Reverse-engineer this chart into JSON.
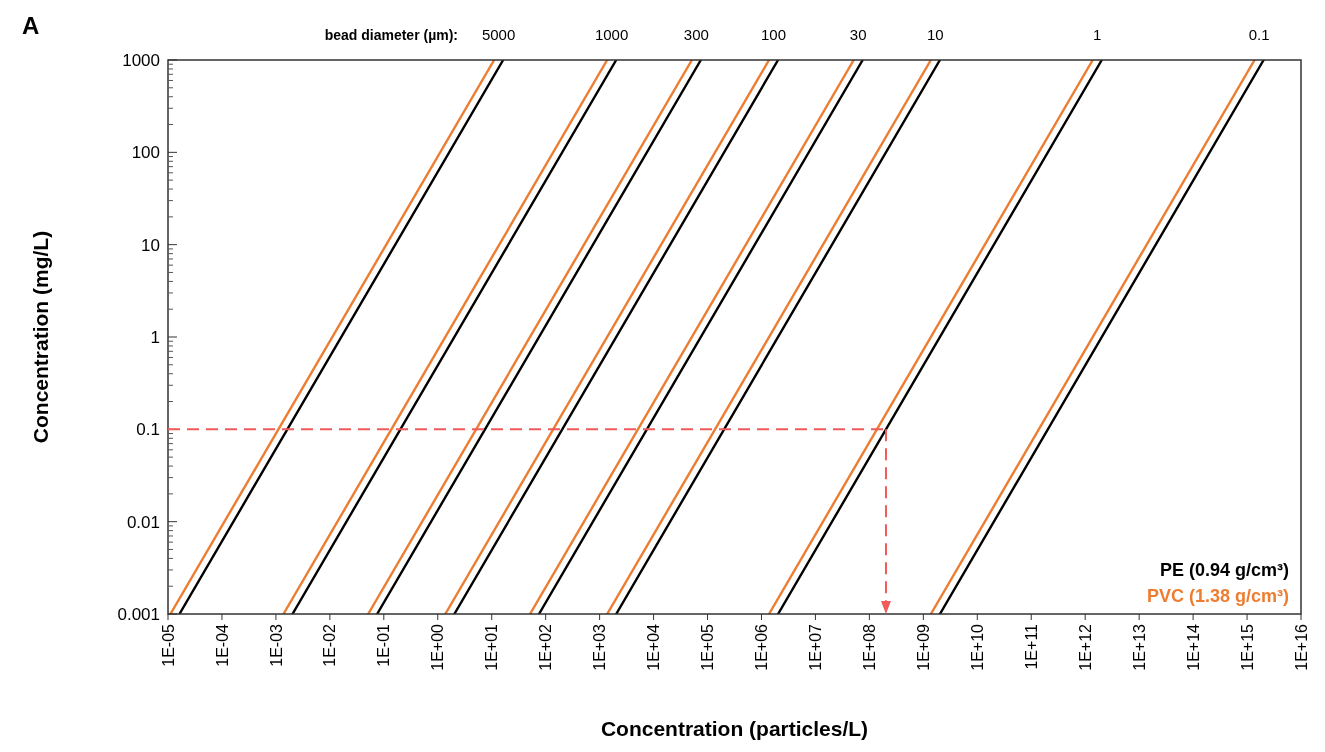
{
  "chart_data": {
    "type": "line",
    "title": "A",
    "xlabel": "Concentration  (particles/L)",
    "ylabel": "Concentration  (mg/L)",
    "log": "xy",
    "legend": "bottom right",
    "line_style": "solid",
    "xlim": [
      1e-05,
      1e+16
    ],
    "xticks": [
      {
        "value": 1e-05,
        "label": "1E-05"
      },
      {
        "value": 0.0001,
        "label": "1E-04"
      },
      {
        "value": 0.001,
        "label": "1E-03"
      },
      {
        "value": 0.01,
        "label": "1E-02"
      },
      {
        "value": 0.1,
        "label": "1E-01"
      },
      {
        "value": 1,
        "label": "1E+00"
      },
      {
        "value": 10.0,
        "label": "1E+01"
      },
      {
        "value": 100.0,
        "label": "1E+02"
      },
      {
        "value": 1000.0,
        "label": "1E+03"
      },
      {
        "value": 10000.0,
        "label": "1E+04"
      },
      {
        "value": 100000.0,
        "label": "1E+05"
      },
      {
        "value": 1000000.0,
        "label": "1E+06"
      },
      {
        "value": 10000000.0,
        "label": "1E+07"
      },
      {
        "value": 100000000.0,
        "label": "1E+08"
      },
      {
        "value": 1000000000.0,
        "label": "1E+09"
      },
      {
        "value": 10000000000.0,
        "label": "1E+10"
      },
      {
        "value": 100000000000.0,
        "label": "1E+11"
      },
      {
        "value": 1000000000000.0,
        "label": "1E+12"
      },
      {
        "value": 10000000000000.0,
        "label": "1E+13"
      },
      {
        "value": 100000000000000.0,
        "label": "1E+14"
      },
      {
        "value": 1000000000000000.0,
        "label": "1E+15"
      },
      {
        "value": 1e+16,
        "label": "1E+16"
      }
    ],
    "ylim": [
      0.001,
      1000
    ],
    "yticks": [
      0.001,
      0.01,
      0.1,
      1,
      10,
      100,
      1000
    ],
    "annotations": [
      "bead diameter (µm):",
      {
        "text": "5000",
        "x": 13.4,
        "y": 1000
      },
      {
        "text": "1000",
        "x": 1670,
        "y": 1000
      },
      {
        "text": "300",
        "x": 62100,
        "y": 1000
      },
      {
        "text": "100",
        "x": 1670000,
        "y": 1000
      },
      {
        "text": "30",
        "x": 62100000,
        "y": 1000
      },
      {
        "text": "10",
        "x": 1670000000,
        "y": 1000
      },
      {
        "text": "1",
        "x": 1670000000000,
        "y": 1000
      },
      {
        "text": "0.1",
        "x": 1670000000000000,
        "y": 1000
      }
    ],
    "ref_lines": [
      {
        "axis": "y",
        "value": 0.1,
        "color": "#f05a5a",
        "line_style": "dashed"
      },
      {
        "axis": "x",
        "value": 203000000,
        "color": "#f05a5a",
        "line_style": "dashed"
      }
    ],
    "series": [
      {
        "name": "PE (0.94 g/cm³)",
        "color": "#000000",
        "x": [
          1.63e-05,
          16.3
        ],
        "values": [
          0.001,
          1000
        ]
      },
      {
        "name": "PVC (1.38 g/cm³)",
        "color": "#ed7d31",
        "x": [
          1.11e-05,
          11.1
        ],
        "values": [
          0.001,
          1000
        ]
      },
      {
        "color": "#000000",
        "x": [
          0.00203,
          2030
        ],
        "values": [
          0.001,
          1000
        ]
      },
      {
        "color": "#ed7d31",
        "x": [
          0.00138,
          1380
        ],
        "values": [
          0.001,
          1000
        ]
      },
      {
        "color": "#000000",
        "x": [
          0.0752,
          75200
        ],
        "values": [
          0.001,
          1000
        ]
      },
      {
        "color": "#ed7d31",
        "x": [
          0.0513,
          51300
        ],
        "values": [
          0.001,
          1000
        ]
      },
      {
        "color": "#000000",
        "x": [
          2.03,
          2030000
        ],
        "values": [
          0.001,
          1000
        ]
      },
      {
        "color": "#ed7d31",
        "x": [
          1.38,
          1380000
        ],
        "values": [
          0.001,
          1000
        ]
      },
      {
        "color": "#000000",
        "x": [
          75.2,
          75200000
        ],
        "values": [
          0.001,
          1000
        ]
      },
      {
        "color": "#ed7d31",
        "x": [
          51.3,
          51300000
        ],
        "values": [
          0.001,
          1000
        ]
      },
      {
        "color": "#000000",
        "x": [
          2030,
          2030000000
        ],
        "values": [
          0.001,
          1000
        ]
      },
      {
        "color": "#ed7d31",
        "x": [
          1380,
          1380000000
        ],
        "values": [
          0.001,
          1000
        ]
      },
      {
        "color": "#000000",
        "x": [
          2030000,
          2030000000000
        ],
        "values": [
          0.001,
          1000
        ]
      },
      {
        "color": "#ed7d31",
        "x": [
          1380000,
          1380000000000
        ],
        "values": [
          0.001,
          1000
        ]
      },
      {
        "color": "#000000",
        "x": [
          2030000000,
          2030000000000000
        ],
        "values": [
          0.001,
          1000
        ]
      },
      {
        "color": "#ed7d31",
        "x": [
          1380000000,
          1380000000000000
        ],
        "values": [
          0.001,
          1000
        ]
      }
    ]
  }
}
